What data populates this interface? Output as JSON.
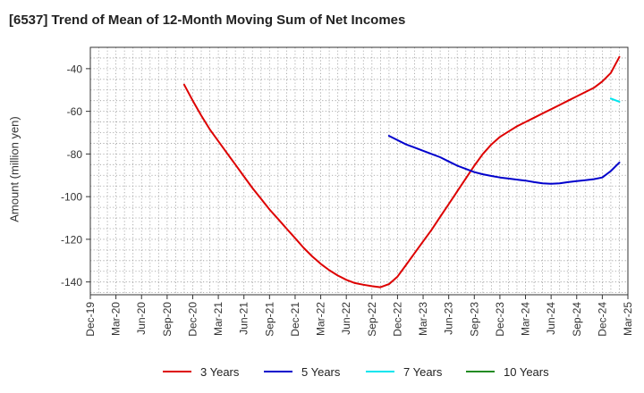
{
  "chart_data": {
    "type": "line",
    "title": "[6537]  Trend of Mean of 12-Month Moving Sum of Net Incomes",
    "ylabel": "Amount (million yen)",
    "xlabel": "",
    "ylim": [
      -146,
      -30
    ],
    "grid": true,
    "legend_position": "bottom",
    "y_ticks": [
      -40,
      -60,
      -80,
      -100,
      -120,
      -140
    ],
    "x_ticks": [
      "Dec-19",
      "Mar-20",
      "Jun-20",
      "Sep-20",
      "Dec-20",
      "Mar-21",
      "Jun-21",
      "Sep-21",
      "Dec-21",
      "Mar-22",
      "Jun-22",
      "Sep-22",
      "Dec-22",
      "Mar-23",
      "Jun-23",
      "Sep-23",
      "Dec-23",
      "Mar-24",
      "Jun-24",
      "Sep-24",
      "Dec-24",
      "Mar-25"
    ],
    "series": [
      {
        "name": "3 Years",
        "color": "#dd0000",
        "points": [
          [
            "Nov-20",
            -47.5
          ],
          [
            "Dec-20",
            -55
          ],
          [
            "Jan-21",
            -62
          ],
          [
            "Feb-21",
            -68.5
          ],
          [
            "Mar-21",
            -74
          ],
          [
            "Apr-21",
            -79.5
          ],
          [
            "May-21",
            -85
          ],
          [
            "Jun-21",
            -90.5
          ],
          [
            "Jul-21",
            -96
          ],
          [
            "Aug-21",
            -101
          ],
          [
            "Sep-21",
            -106
          ],
          [
            "Oct-21",
            -110.5
          ],
          [
            "Nov-21",
            -115
          ],
          [
            "Dec-21",
            -119.5
          ],
          [
            "Jan-22",
            -124
          ],
          [
            "Feb-22",
            -128
          ],
          [
            "Mar-22",
            -131.5
          ],
          [
            "Apr-22",
            -134.5
          ],
          [
            "May-22",
            -137
          ],
          [
            "Jun-22",
            -139
          ],
          [
            "Jul-22",
            -140.5
          ],
          [
            "Aug-22",
            -141.3
          ],
          [
            "Sep-22",
            -142
          ],
          [
            "Oct-22",
            -142.5
          ],
          [
            "Nov-22",
            -141
          ],
          [
            "Dec-22",
            -137.5
          ],
          [
            "Jan-23",
            -132
          ],
          [
            "Feb-23",
            -126.5
          ],
          [
            "Mar-23",
            -121
          ],
          [
            "Apr-23",
            -115.5
          ],
          [
            "May-23",
            -109.5
          ],
          [
            "Jun-23",
            -103.5
          ],
          [
            "Jul-23",
            -97.5
          ],
          [
            "Aug-23",
            -91.5
          ],
          [
            "Sep-23",
            -85.5
          ],
          [
            "Oct-23",
            -80
          ],
          [
            "Nov-23",
            -75.5
          ],
          [
            "Dec-23",
            -72
          ],
          [
            "Jan-24",
            -69.5
          ],
          [
            "Feb-24",
            -67
          ],
          [
            "Mar-24",
            -65
          ],
          [
            "Apr-24",
            -63
          ],
          [
            "May-24",
            -61
          ],
          [
            "Jun-24",
            -59
          ],
          [
            "Jul-24",
            -57
          ],
          [
            "Aug-24",
            -55
          ],
          [
            "Sep-24",
            -53
          ],
          [
            "Oct-24",
            -51
          ],
          [
            "Nov-24",
            -49
          ],
          [
            "Dec-24",
            -46
          ],
          [
            "Jan-25",
            -42
          ],
          [
            "Feb-25",
            -34.5
          ]
        ]
      },
      {
        "name": "5 Years",
        "color": "#0000cc",
        "points": [
          [
            "Nov-22",
            -71.5
          ],
          [
            "Dec-22",
            -73.5
          ],
          [
            "Jan-23",
            -75.5
          ],
          [
            "Feb-23",
            -77
          ],
          [
            "Mar-23",
            -78.5
          ],
          [
            "Apr-23",
            -80
          ],
          [
            "May-23",
            -81.5
          ],
          [
            "Jun-23",
            -83.5
          ],
          [
            "Jul-23",
            -85.5
          ],
          [
            "Aug-23",
            -87
          ],
          [
            "Sep-23",
            -88.5
          ],
          [
            "Oct-23",
            -89.5
          ],
          [
            "Nov-23",
            -90.3
          ],
          [
            "Dec-23",
            -91
          ],
          [
            "Jan-24",
            -91.5
          ],
          [
            "Feb-24",
            -92
          ],
          [
            "Mar-24",
            -92.5
          ],
          [
            "Apr-24",
            -93.2
          ],
          [
            "May-24",
            -93.8
          ],
          [
            "Jun-24",
            -94
          ],
          [
            "Jul-24",
            -93.8
          ],
          [
            "Aug-24",
            -93.2
          ],
          [
            "Sep-24",
            -92.7
          ],
          [
            "Oct-24",
            -92.3
          ],
          [
            "Nov-24",
            -91.8
          ],
          [
            "Dec-24",
            -91
          ],
          [
            "Jan-25",
            -88
          ],
          [
            "Feb-25",
            -84
          ]
        ]
      },
      {
        "name": "7 Years",
        "color": "#00e5ee",
        "points": [
          [
            "Jan-25",
            -54
          ],
          [
            "Feb-25",
            -55.5
          ]
        ]
      },
      {
        "name": "10 Years",
        "color": "#228b22",
        "points": []
      }
    ]
  }
}
